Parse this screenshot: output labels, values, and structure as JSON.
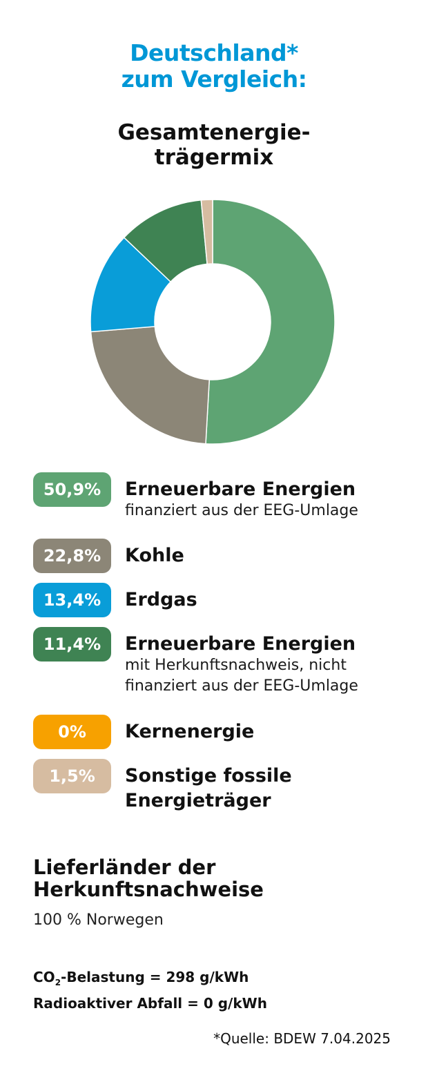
{
  "header": {
    "title_line1": "Deutschland*",
    "title_line2": "zum Vergleich:",
    "subtitle_line1": "Gesamtenergie-",
    "subtitle_line2": "trägermix"
  },
  "chart_data": {
    "type": "pie",
    "variant": "donut",
    "title": "Gesamtenergieträgermix",
    "start_angle_deg": 0,
    "slices": [
      {
        "label": "Erneuerbare Energien finanziert aus der EEG-Umlage",
        "value": 50.9,
        "display": "50,9%",
        "color": "#5ea473"
      },
      {
        "label": "Kohle",
        "value": 22.8,
        "display": "22,8%",
        "color": "#8c8677"
      },
      {
        "label": "Erdgas",
        "value": 13.4,
        "display": "13,4%",
        "color": "#099dd8"
      },
      {
        "label": "Erneuerbare Energien mit Herkunftsnachweis, nicht finanziert aus der EEG-Umlage",
        "value": 11.4,
        "display": "11,4%",
        "color": "#3f8353"
      },
      {
        "label": "Kernenergie",
        "value": 0,
        "display": "0%",
        "color": "#f7a100"
      },
      {
        "label": "Sonstige fossile Energieträger",
        "value": 1.5,
        "display": "1,5%",
        "color": "#d6bca1"
      }
    ]
  },
  "legend": [
    {
      "badge": "50,9%",
      "color": "#5ea473",
      "label_lines": [
        "Erneuerbare Energien"
      ],
      "note_lines": [
        "finanziert aus der EEG-Umlage"
      ]
    },
    {
      "badge": "22,8%",
      "color": "#8c8677",
      "label_lines": [
        "Kohle"
      ],
      "note_lines": []
    },
    {
      "badge": "13,4%",
      "color": "#099dd8",
      "label_lines": [
        "Erdgas"
      ],
      "note_lines": []
    },
    {
      "badge": "11,4%",
      "color": "#3f8353",
      "label_lines": [
        "Erneuerbare Energien"
      ],
      "note_lines": [
        "mit Herkunftsnachweis, nicht",
        "finanziert aus der EEG-Umlage"
      ]
    },
    {
      "badge": "0%",
      "color": "#f7a100",
      "label_lines": [
        "Kernenergie"
      ],
      "note_lines": []
    },
    {
      "badge": "1,5%",
      "color": "#d6bca1",
      "label_lines": [
        "Sonstige fossile",
        "Energieträger"
      ],
      "note_lines": []
    }
  ],
  "supplier": {
    "title_line1": "Lieferländer der",
    "title_line2": "Herkunftsnachweise",
    "text": "100 % Norwegen"
  },
  "stats": {
    "co2_prefix": "CO",
    "co2_sub": "2",
    "co2_suffix": "-Belastung = 298 g/kWh",
    "waste": "Radioaktiver Abfall = 0 g/kWh"
  },
  "source": "*Quelle: BDEW 7.04.2025"
}
